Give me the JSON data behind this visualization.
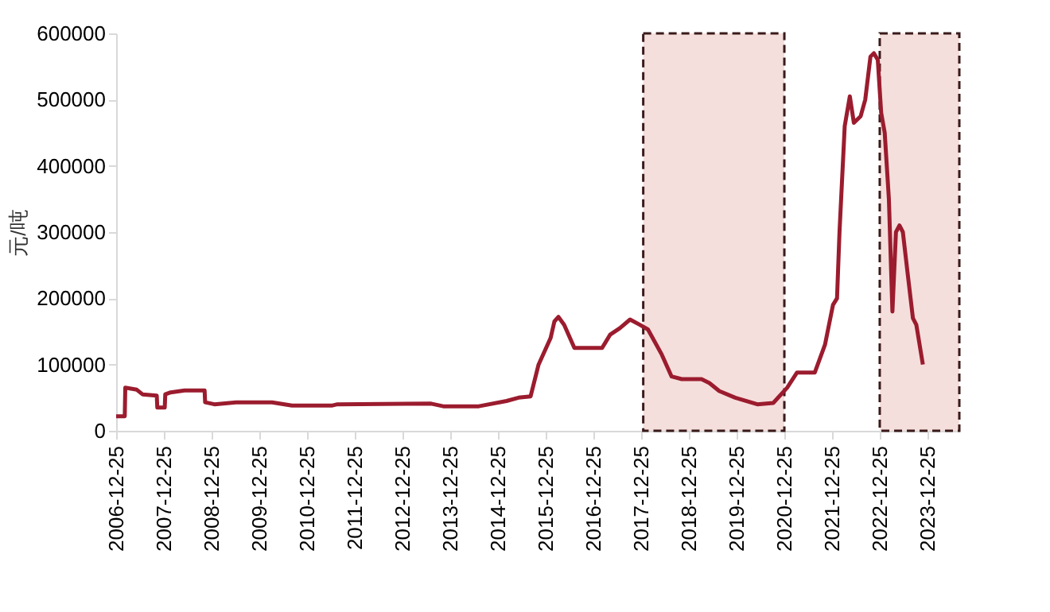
{
  "chart_data": {
    "type": "line",
    "ylabel": "元/吨",
    "x": [
      "2006-12-25",
      "2007-03-01",
      "2007-03-05",
      "2007-06-01",
      "2007-07-15",
      "2007-11-01",
      "2007-11-05",
      "2008-01-01",
      "2008-01-05",
      "2008-02-15",
      "2008-06-01",
      "2008-11-01",
      "2008-11-05",
      "2009-01-15",
      "2009-07-01",
      "2010-04-01",
      "2010-09-01",
      "2011-07-01",
      "2011-08-15",
      "2013-08-01",
      "2013-11-01",
      "2014-08-01",
      "2015-03-01",
      "2015-06-01",
      "2015-09-01",
      "2015-11-01",
      "2016-02-01",
      "2016-03-01",
      "2016-04-01",
      "2016-05-15",
      "2016-08-01",
      "2016-10-01",
      "2017-03-01",
      "2017-05-01",
      "2017-07-15",
      "2017-10-01",
      "2017-12-15",
      "2018-02-15",
      "2018-06-01",
      "2018-08-15",
      "2018-11-01",
      "2019-04-01",
      "2019-06-01",
      "2019-08-15",
      "2019-12-15",
      "2020-06-01",
      "2020-10-01",
      "2021-01-15",
      "2021-04-01",
      "2021-08-15",
      "2021-11-01",
      "2022-01-01",
      "2022-02-01",
      "2022-02-20",
      "2022-04-01",
      "2022-05-10",
      "2022-06-10",
      "2022-08-01",
      "2022-09-05",
      "2022-10-15",
      "2022-11-10",
      "2022-12-10",
      "2023-01-05",
      "2023-02-01",
      "2023-03-05",
      "2023-04-01",
      "2023-04-28",
      "2023-05-25",
      "2023-06-20",
      "2023-07-25",
      "2023-09-05",
      "2023-10-01",
      "2023-11-20"
    ],
    "series": [
      {
        "color": "#9b1c2e",
        "values": [
          22000,
          22000,
          65000,
          62000,
          55000,
          53000,
          35000,
          35000,
          55000,
          58000,
          61000,
          61000,
          43000,
          40000,
          43000,
          43000,
          38000,
          38000,
          40000,
          41000,
          37000,
          37000,
          45000,
          50000,
          52000,
          100000,
          140000,
          165000,
          172000,
          160000,
          125000,
          125000,
          125000,
          145000,
          155000,
          168000,
          160000,
          153000,
          115000,
          82000,
          78000,
          78000,
          72000,
          60000,
          50000,
          40000,
          42000,
          65000,
          88000,
          88000,
          130000,
          190000,
          200000,
          300000,
          460000,
          505000,
          465000,
          475000,
          500000,
          565000,
          570000,
          560000,
          480000,
          450000,
          350000,
          180000,
          300000,
          310000,
          300000,
          240000,
          170000,
          160000,
          100000
        ]
      }
    ],
    "xlim": [
      "2006-12-25",
      "2024-08-25"
    ],
    "xticks": [
      "2006-12-25",
      "2007-12-25",
      "2008-12-25",
      "2009-12-25",
      "2010-12-25",
      "2011-12-25",
      "2012-12-25",
      "2013-12-25",
      "2014-12-25",
      "2015-12-25",
      "2016-12-25",
      "2017-12-25",
      "2018-12-25",
      "2019-12-25",
      "2020-12-25",
      "2021-12-25",
      "2022-12-25",
      "2023-12-25"
    ],
    "ylim": [
      0,
      600000
    ],
    "yticks": [
      0,
      100000,
      200000,
      300000,
      400000,
      500000,
      600000
    ],
    "grid": false,
    "line_style": "solid",
    "marker": "none",
    "bands": [
      {
        "axis": "x",
        "from": "2018-01-10",
        "to": "2020-12-25",
        "color": "#f5dfdc"
      },
      {
        "axis": "x",
        "from": "2022-12-25",
        "to": "2024-08-25",
        "color": "#f5dfdc"
      }
    ]
  }
}
